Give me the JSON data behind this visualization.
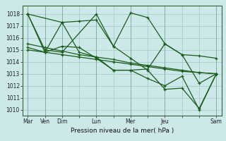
{
  "bg_color": "#cce8e8",
  "grid_color": "#aacccc",
  "line_color": "#1a5c1a",
  "title": "Pression niveau de la mer( hPa )",
  "ylim": [
    1009.5,
    1018.7
  ],
  "yticks": [
    1010,
    1011,
    1012,
    1013,
    1014,
    1015,
    1016,
    1017,
    1018
  ],
  "xtick_labels": [
    "Mar",
    "Ven",
    "Dim",
    "",
    "Lun",
    "",
    "Mer",
    "",
    "Jeu",
    "",
    "",
    "Sam"
  ],
  "xtick_positions": [
    0,
    1,
    2,
    3,
    4,
    5,
    6,
    7,
    8,
    9,
    10,
    11
  ],
  "series": [
    {
      "x": [
        0,
        1,
        2,
        3,
        4,
        5,
        6,
        7,
        8,
        9,
        10,
        11
      ],
      "y": [
        1018.0,
        1014.8,
        1017.3,
        1017.4,
        1017.5,
        1015.3,
        1018.1,
        1017.7,
        1015.5,
        1014.6,
        1014.5,
        1014.3
      ]
    },
    {
      "x": [
        0,
        1,
        2,
        3,
        4,
        5,
        6,
        7,
        8,
        9,
        10,
        11
      ],
      "y": [
        1015.5,
        1015.2,
        1014.9,
        1014.6,
        1014.4,
        1014.2,
        1013.9,
        1013.7,
        1013.5,
        1013.3,
        1013.1,
        1013.0
      ]
    },
    {
      "x": [
        0,
        1,
        2,
        3,
        4,
        5,
        6,
        7,
        8,
        9,
        10,
        11
      ],
      "y": [
        1015.0,
        1014.8,
        1014.6,
        1014.4,
        1014.2,
        1014.0,
        1013.8,
        1013.6,
        1013.4,
        1013.2,
        1013.1,
        1013.0
      ]
    },
    {
      "x": [
        0,
        1,
        2,
        3,
        4,
        5,
        6,
        7,
        8,
        9,
        10,
        11
      ],
      "y": [
        1015.2,
        1014.8,
        1015.3,
        1015.2,
        1014.3,
        1013.3,
        1013.3,
        1013.4,
        1015.5,
        1014.6,
        1012.2,
        1013.0
      ]
    },
    {
      "x": [
        0,
        1,
        2,
        4,
        5,
        6,
        7,
        8,
        9,
        10,
        11
      ],
      "y": [
        1018.0,
        1015.0,
        1014.8,
        1018.0,
        1015.3,
        1014.3,
        1013.3,
        1011.7,
        1011.8,
        1010.1,
        1013.0
      ]
    },
    {
      "x": [
        0,
        2,
        3,
        4,
        5,
        6,
        7,
        8,
        9,
        10,
        11
      ],
      "y": [
        1018.0,
        1017.3,
        1014.8,
        1014.4,
        1013.3,
        1013.3,
        1012.6,
        1012.0,
        1012.8,
        1010.0,
        1013.0
      ]
    }
  ]
}
